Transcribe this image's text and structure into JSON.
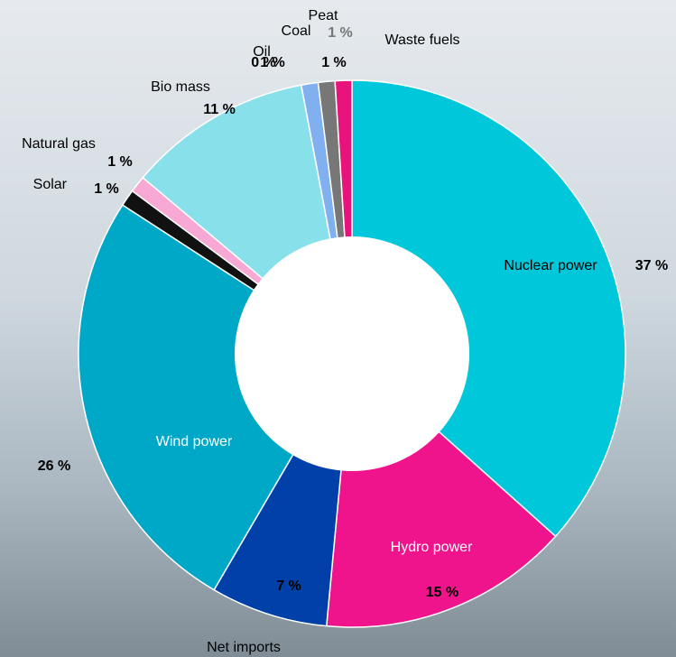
{
  "chart_data": {
    "type": "donut",
    "categories": [
      "Nuclear power",
      "Hydro power",
      "Net imports",
      "Wind power",
      "Solar",
      "Natural gas",
      "Bio mass",
      "Oil",
      "Coal",
      "Peat",
      "Waste fuels"
    ],
    "values": [
      37,
      15,
      7,
      26,
      1,
      1,
      11,
      0,
      1,
      1,
      1
    ],
    "value_labels": [
      "37 %",
      "15 %",
      "7 %",
      "26 %",
      "1 %",
      "1 %",
      "11 %",
      "0 %",
      "1 %",
      "1 %",
      "1 %"
    ],
    "colors": [
      "#00c8da",
      "#f0148c",
      "#0040a8",
      "#00a8c8",
      "#111111",
      "#f8a8d4",
      "#88e0ea",
      "#aaaaaa",
      "#80b0f0",
      "#777777",
      "#e8147c"
    ]
  }
}
